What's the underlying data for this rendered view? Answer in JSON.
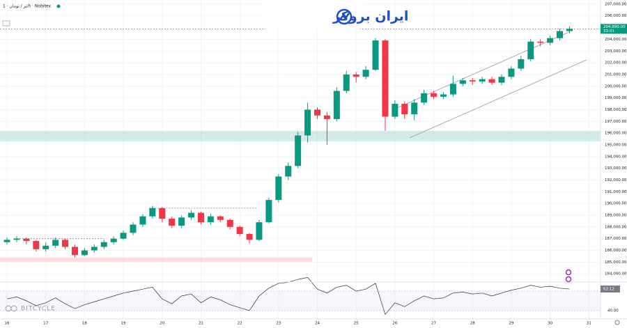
{
  "header": {
    "symbol": "تتر / تومان · 1h · Nobitex",
    "logo": "ایران بروکر",
    "watermark": "BITCYCLE",
    "countdown": "33:01"
  },
  "chart_data": [
    {
      "type": "candlestick",
      "x": [
        16,
        16.25,
        16.5,
        16.75,
        17,
        17.25,
        17.5,
        17.75,
        18,
        18.25,
        18.5,
        18.75,
        19,
        19.25,
        19.5,
        19.75,
        20,
        20.25,
        20.5,
        20.75,
        21,
        21.25,
        21.5,
        21.75,
        22,
        22.25,
        22.5,
        22.75,
        23,
        23.25,
        23.5,
        23.75,
        24,
        24.25,
        24.5,
        24.75,
        25,
        25.25,
        25.5,
        25.75,
        26,
        26.25,
        26.5,
        26.75,
        27,
        27.25,
        27.5,
        27.75,
        28,
        28.25,
        28.5,
        28.75,
        29,
        29.25,
        29.5,
        29.75,
        30,
        30.25,
        30.5
      ],
      "open": [
        186700,
        186900,
        187000,
        186800,
        186100,
        186400,
        186900,
        186300,
        185600,
        186000,
        186300,
        186700,
        187000,
        187500,
        188200,
        188900,
        189600,
        188700,
        188100,
        188800,
        189200,
        188400,
        188900,
        188600,
        188000,
        187400,
        186900,
        188400,
        190300,
        192300,
        193200,
        195800,
        198000,
        197500,
        197200,
        199600,
        201000,
        200800,
        201400,
        203900,
        197400,
        198500,
        197600,
        198600,
        199400,
        199100,
        199300,
        200200,
        200500,
        200400,
        200600,
        200300,
        200800,
        201500,
        202300,
        203800,
        203700,
        204100,
        204700
      ],
      "high": [
        187100,
        187200,
        187100,
        186900,
        186700,
        187100,
        187000,
        186500,
        186200,
        186500,
        186900,
        187200,
        187700,
        188400,
        189100,
        189800,
        189700,
        188900,
        189000,
        189400,
        189300,
        189100,
        189000,
        188700,
        188100,
        187500,
        188600,
        190500,
        192500,
        193500,
        196100,
        198600,
        198200,
        197800,
        199900,
        201300,
        201200,
        201700,
        204100,
        204000,
        198800,
        198700,
        198900,
        199700,
        199600,
        199500,
        200900,
        200700,
        200700,
        200800,
        200800,
        201000,
        201700,
        202600,
        204000,
        204000,
        204300,
        204900,
        205100
      ],
      "low": [
        186500,
        186700,
        186500,
        185900,
        185900,
        186200,
        186100,
        185400,
        185500,
        185800,
        186100,
        186500,
        186900,
        187300,
        188000,
        188700,
        188400,
        187900,
        187900,
        188600,
        188200,
        188200,
        188400,
        187800,
        187200,
        186600,
        186800,
        188300,
        190100,
        192000,
        193000,
        195200,
        197200,
        195000,
        197000,
        199400,
        200300,
        200600,
        201300,
        196200,
        197200,
        197200,
        197100,
        198400,
        198900,
        198900,
        199100,
        200000,
        200100,
        200200,
        200100,
        200100,
        200600,
        201300,
        202100,
        203400,
        203500,
        203900,
        204500
      ],
      "close": [
        186900,
        187000,
        186800,
        186100,
        186400,
        186900,
        186300,
        185600,
        186000,
        186300,
        186700,
        187000,
        187500,
        188200,
        188900,
        189600,
        188700,
        188100,
        188800,
        189200,
        188400,
        188900,
        188600,
        188000,
        187400,
        186900,
        188400,
        190300,
        192300,
        193200,
        195800,
        198000,
        197500,
        197200,
        199600,
        201000,
        200800,
        201400,
        203900,
        197400,
        198500,
        197600,
        198600,
        199400,
        199100,
        199300,
        200200,
        200500,
        200400,
        200600,
        200300,
        200800,
        201500,
        202300,
        203800,
        203700,
        204100,
        204700,
        204890
      ],
      "last_label": "204,890.00",
      "up_color": "#089981",
      "down_color": "#f23645",
      "xlim": [
        15.82,
        31.3
      ],
      "ylim": [
        183300,
        207350
      ],
      "xticks": [
        16,
        17,
        18,
        19,
        20,
        21,
        22,
        23,
        24,
        25,
        26,
        27,
        28,
        29,
        30,
        31
      ],
      "yticks": [
        {
          "value": 207000,
          "label": "207,000.00"
        },
        {
          "value": 206000,
          "label": "206,000.00"
        },
        {
          "value": 204000,
          "label": "204,000.00"
        },
        {
          "value": 203000,
          "label": "203,000.00"
        },
        {
          "value": 202000,
          "label": "202,000.00"
        },
        {
          "value": 201000,
          "label": "201,000.00"
        },
        {
          "value": 200000,
          "label": "200,000.00"
        },
        {
          "value": 199000,
          "label": "199,000.00"
        },
        {
          "value": 198000,
          "label": "198,000.00"
        },
        {
          "value": 197000,
          "label": "197,000.00"
        },
        {
          "value": 196000,
          "label": "196,000.00"
        },
        {
          "value": 195000,
          "label": "195,000.00"
        },
        {
          "value": 194000,
          "label": "194,000.00"
        },
        {
          "value": 193000,
          "label": "193,000.00"
        },
        {
          "value": 192000,
          "label": "192,000.00"
        },
        {
          "value": 191000,
          "label": "191,000.00"
        },
        {
          "value": 190000,
          "label": "190,000.00"
        },
        {
          "value": 189000,
          "label": "189,000.00"
        },
        {
          "value": 188000,
          "label": "188,000.00"
        },
        {
          "value": 187000,
          "label": "187,000.00"
        },
        {
          "value": 186000,
          "label": "186,000.00"
        },
        {
          "value": 185000,
          "label": "185,000.00"
        },
        {
          "value": 184000,
          "label": "184,000.00"
        }
      ],
      "zones": [
        {
          "x1": 15.82,
          "x2": 31.3,
          "y1": 195300,
          "y2": 196200,
          "color": "#b2dfdb"
        },
        {
          "x1": 15.82,
          "x2": 23.87,
          "y1": 185000,
          "y2": 185400,
          "color": "#f8c9cc"
        }
      ],
      "lines": [
        {
          "x1": 25.93,
          "y1": 197970,
          "x2": 30.49,
          "y2": 204620,
          "color": "#9598a1",
          "dash": false
        },
        {
          "x1": 26.38,
          "y1": 195590,
          "x2": 30.94,
          "y2": 202245,
          "color": "#9598a1",
          "dash": false
        },
        {
          "x1": 16.18,
          "y1": 187000,
          "x2": 18.5,
          "y2": 187000,
          "color": "#787b86",
          "dash": true
        },
        {
          "x1": 19.67,
          "y1": 189600,
          "x2": 22.44,
          "y2": 189600,
          "color": "#787b86",
          "dash": true
        }
      ]
    },
    {
      "type": "line",
      "x": [
        16,
        16.25,
        16.5,
        16.75,
        17,
        17.25,
        17.5,
        17.75,
        18,
        18.25,
        18.5,
        18.75,
        19,
        19.25,
        19.5,
        19.75,
        20,
        20.25,
        20.5,
        20.75,
        21,
        21.25,
        21.5,
        21.75,
        22,
        22.25,
        22.5,
        22.75,
        23,
        23.25,
        23.5,
        23.75,
        24,
        24.25,
        24.5,
        24.75,
        25,
        25.25,
        25.5,
        25.75,
        26,
        26.25,
        26.5,
        26.75,
        27,
        27.25,
        27.5,
        27.75,
        28,
        28.25,
        28.5,
        28.75,
        29,
        29.25,
        29.5,
        29.75,
        30,
        30.25,
        30.5
      ],
      "values": [
        52,
        54,
        50,
        45,
        48,
        53,
        47,
        42,
        46,
        49,
        52,
        55,
        58,
        60,
        62,
        64,
        52,
        47,
        55,
        57,
        48,
        54,
        51,
        46,
        43,
        40,
        55,
        63,
        68,
        69,
        72,
        74,
        62,
        58,
        64,
        66,
        60,
        62,
        68,
        36,
        48,
        44,
        50,
        55,
        52,
        53,
        58,
        59,
        57,
        58,
        55,
        58,
        61,
        63,
        66,
        64,
        65,
        63,
        62.12
      ],
      "last_label": "62.12",
      "color": "#2a2e39",
      "ylim": [
        31.4,
        69.3
      ],
      "yticks": [
        {
          "value": 60,
          "label": "60.00"
        },
        {
          "value": 40,
          "label": "40.00"
        }
      ]
    }
  ]
}
